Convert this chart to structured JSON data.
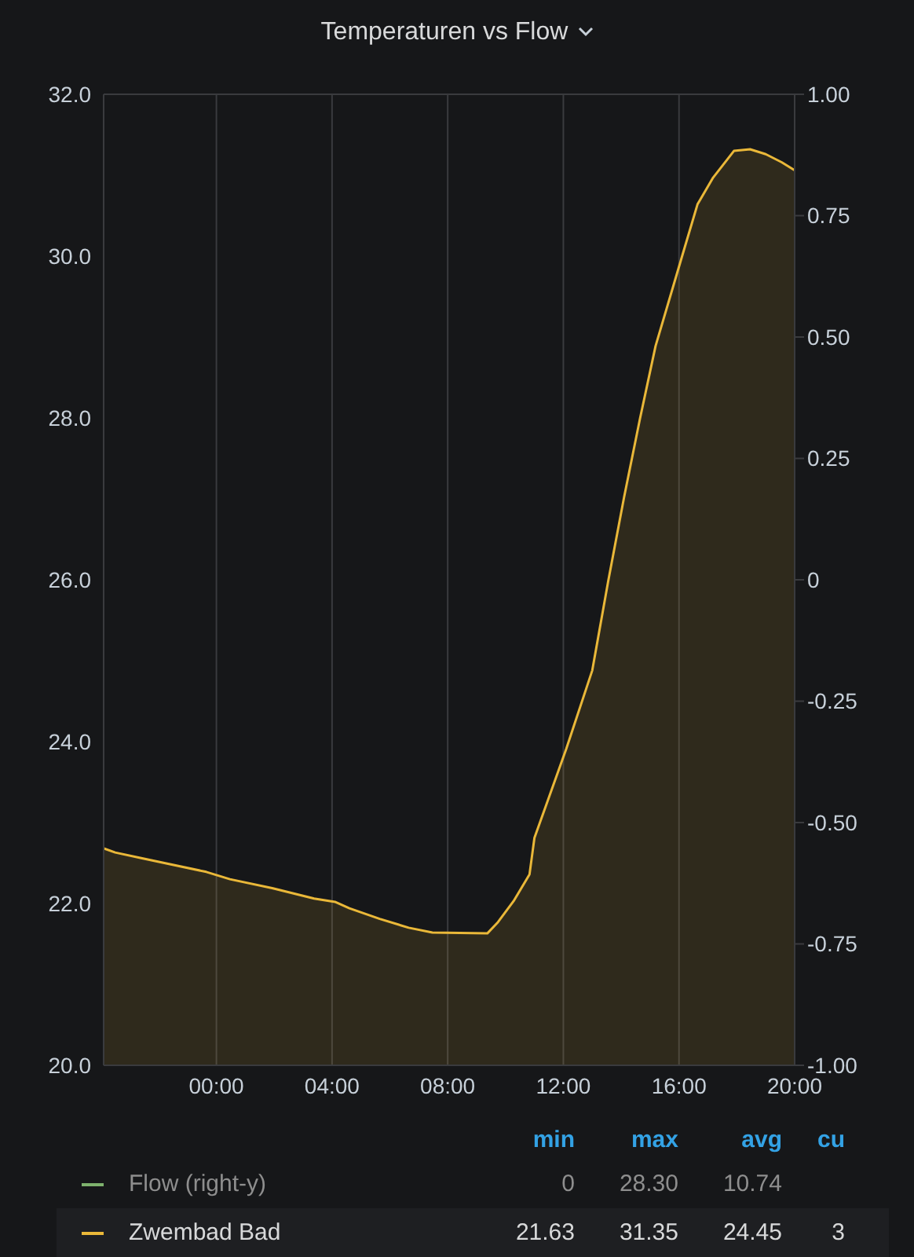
{
  "chart_data": {
    "type": "area",
    "title": "Temperaturen vs Flow",
    "x": [
      -3.89,
      -3.5,
      -2.6,
      -1.8,
      -0.35,
      0.47,
      1.93,
      3.38,
      4.1,
      4.6,
      5.65,
      6.65,
      7.47,
      9.37,
      9.74,
      10.28,
      10.83,
      11.0,
      12.1,
      13.0,
      13.55,
      14.1,
      14.65,
      15.19,
      16.1,
      16.64,
      17.18,
      17.9,
      18.46,
      19.0,
      19.55,
      20.0
    ],
    "series": [
      {
        "name": "Flow (right-y)",
        "color": "#7eb26d",
        "values": [
          null,
          null,
          null,
          null,
          null,
          null,
          null,
          null,
          null,
          null,
          null,
          null,
          null,
          null,
          null,
          null,
          null,
          null,
          null,
          null,
          null,
          null,
          null,
          null,
          null,
          null,
          null,
          null,
          null,
          null,
          null,
          null
        ]
      },
      {
        "name": "Zwembad Bad",
        "color": "#eab839",
        "values": [
          22.68,
          22.63,
          22.56,
          22.5,
          22.39,
          22.3,
          22.19,
          22.06,
          22.02,
          21.94,
          21.81,
          21.7,
          21.64,
          21.63,
          21.77,
          22.03,
          22.36,
          22.81,
          23.91,
          24.88,
          25.98,
          27.02,
          27.99,
          28.89,
          29.99,
          30.64,
          30.97,
          31.3,
          31.32,
          31.26,
          31.16,
          31.06
        ]
      }
    ],
    "xlim": [
      -3.9,
      20
    ],
    "xticks": [
      {
        "value": 0,
        "label": "00:00"
      },
      {
        "value": 4,
        "label": "04:00"
      },
      {
        "value": 8,
        "label": "08:00"
      },
      {
        "value": 12,
        "label": "12:00"
      },
      {
        "value": 16,
        "label": "16:00"
      },
      {
        "value": 20,
        "label": "20:00"
      }
    ],
    "ylim": [
      20,
      32
    ],
    "yticks": [
      {
        "value": 20,
        "label": "20.0"
      },
      {
        "value": 22,
        "label": "22.0"
      },
      {
        "value": 24,
        "label": "24.0"
      },
      {
        "value": 26,
        "label": "26.0"
      },
      {
        "value": 28,
        "label": "28.0"
      },
      {
        "value": 30,
        "label": "30.0"
      },
      {
        "value": 32,
        "label": "32.0"
      }
    ],
    "y2lim": [
      -1,
      1
    ],
    "y2ticks": [
      {
        "value": -1,
        "label": "-1.00"
      },
      {
        "value": -0.75,
        "label": "-0.75"
      },
      {
        "value": -0.5,
        "label": "-0.50"
      },
      {
        "value": -0.25,
        "label": "-0.25"
      },
      0,
      {
        "value": 0.25,
        "label": "0.25"
      },
      {
        "value": 0.5,
        "label": "0.50"
      },
      {
        "value": 0.75,
        "label": "0.75"
      },
      {
        "value": 1,
        "label": "1.00"
      }
    ],
    "annotations": [
      "min",
      "max",
      "avg",
      "cu",
      "0",
      "28.30",
      "10.74",
      "21.63",
      "31.35",
      "24.45",
      "3"
    ],
    "grid": true,
    "legend": "bottom",
    "marker": "none",
    "line_style": "solid"
  }
}
